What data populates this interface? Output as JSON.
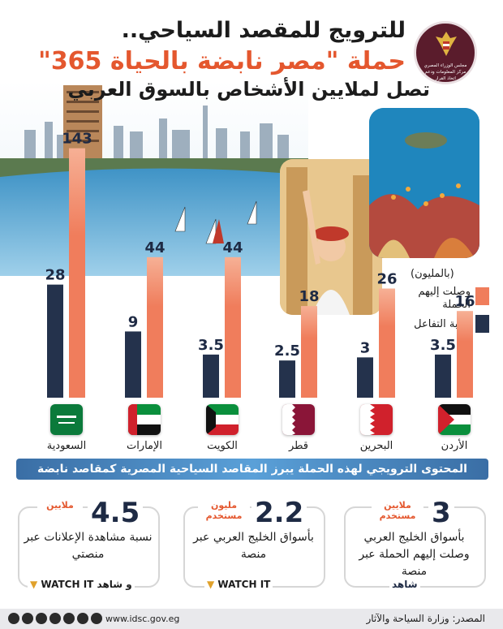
{
  "header": {
    "line1": "للترويج للمقصد السياحي..",
    "line2": "حملة \"مصر نابضة بالحياة 365\"",
    "line3": "تصل لملايين الأشخاص بالسوق العربي",
    "logo_text": "مجلس الوزراء المصري مركز المعلومات ودعم اتخاذ القرار"
  },
  "legend": {
    "unit": "(بالمليون)",
    "reached": "وصلت إليهم الحملة",
    "engagement": "نسبة التفاعل"
  },
  "chart_data": {
    "type": "bar",
    "categories": [
      "السعودية",
      "الإمارات",
      "الكويت",
      "قطر",
      "البحرين",
      "الأردن"
    ],
    "series": [
      {
        "name": "وصلت إليهم الحملة",
        "values": [
          143,
          44,
          44,
          18,
          26,
          16
        ]
      },
      {
        "name": "نسبة التفاعل",
        "values": [
          28,
          9,
          3.5,
          2.5,
          3,
          3.5
        ]
      }
    ],
    "value_labels": {
      "reached": [
        "143",
        "44",
        "44",
        "18",
        "26",
        "16"
      ],
      "engagement": [
        "28",
        "9",
        "3.5",
        "2.5",
        "3",
        "3.5"
      ]
    },
    "colors": {
      "reached": "#f07d5c",
      "engagement": "#24324c"
    }
  },
  "banner": "المحتوى الترويجي لهذه الحملة يبرز المقاصد السياحية المصرية كمقاصد نابضة",
  "stats": [
    {
      "value": "3",
      "unit": "ملايين مستخدم",
      "desc": "بأسواق الخليج العربي وصلت إليهم الحملة عبر منصة",
      "brand": "شاهد"
    },
    {
      "value": "2.2",
      "unit": "مليون مستخدم",
      "desc": "بأسواق الخليج العربي عبر منصة",
      "brand": "WATCH IT"
    },
    {
      "value": "4.5",
      "unit": "ملايين",
      "desc": "نسبة مشاهدة الإعلانات عبر منصتي",
      "brand": "WATCH IT و شاهد"
    }
  ],
  "footer": {
    "source": "المصدر: وزارة السياحة والآثار",
    "site": "www.idsc.gov.eg"
  }
}
